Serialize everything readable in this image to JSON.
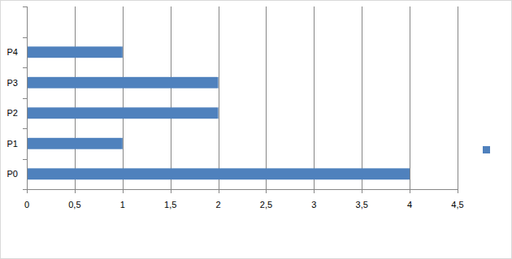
{
  "chart_data": {
    "type": "bar",
    "orientation": "horizontal",
    "categories": [
      "P0",
      "P1",
      "P2",
      "P3",
      "P4",
      null
    ],
    "values": [
      4,
      1,
      2,
      2,
      1,
      null
    ],
    "color": "#4f81bd",
    "xlim": [
      0,
      4.5
    ],
    "xticks": [
      0,
      {
        "value": 0.5,
        "label": "0,5"
      },
      1,
      {
        "value": 1.5,
        "label": "1,5"
      },
      2,
      {
        "value": 2.5,
        "label": "2,5"
      },
      3,
      {
        "value": 3.5,
        "label": "3,5"
      },
      4,
      {
        "value": 4.5,
        "label": "4,5"
      }
    ],
    "grid": true,
    "legend": "right"
  }
}
